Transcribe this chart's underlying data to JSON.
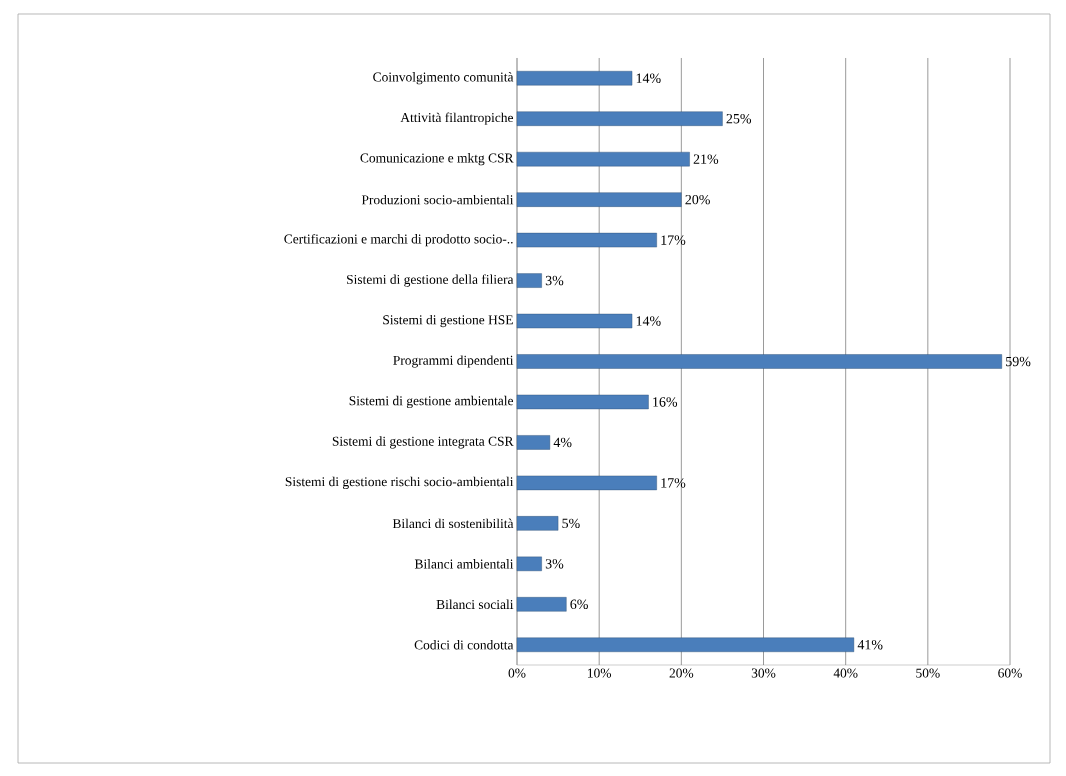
{
  "chart_data": {
    "type": "bar",
    "orientation": "horizontal",
    "categories": [
      "Coinvolgimento comunità",
      "Attività filantropiche",
      "Comunicazione e mktg CSR",
      "Produzioni socio-ambientali",
      "Certificazioni e marchi di prodotto socio-..",
      "Sistemi di gestione della filiera",
      "Sistemi di gestione HSE",
      "Programmi dipendenti",
      "Sistemi di gestione ambientale",
      "Sistemi di gestione integrata CSR",
      "Sistemi di gestione rischi socio-ambientali",
      "Bilanci di sostenibilità",
      "Bilanci ambientali",
      "Bilanci sociali",
      "Codici di condotta"
    ],
    "values": [
      14,
      25,
      21,
      20,
      17,
      3,
      14,
      59,
      16,
      4,
      17,
      5,
      3,
      6,
      41
    ],
    "value_labels": [
      "14%",
      "25%",
      "21%",
      "20%",
      "17%",
      "3%",
      "14%",
      "59%",
      "16%",
      "4%",
      "17%",
      "5%",
      "3%",
      "6%",
      "41%"
    ],
    "color": "#4a7ebb",
    "xlim": [
      0,
      60
    ],
    "xticks": [
      {
        "value": 0,
        "label": "0%"
      },
      {
        "value": 10,
        "label": "10%"
      },
      {
        "value": 20,
        "label": "20%"
      },
      {
        "value": 30,
        "label": "30%"
      },
      {
        "value": 40,
        "label": "40%"
      },
      {
        "value": 50,
        "label": "50%"
      },
      {
        "value": 60,
        "label": "60%"
      }
    ],
    "grid": "x"
  }
}
